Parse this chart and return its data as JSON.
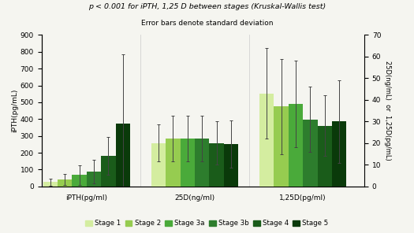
{
  "title_line1": "p < 0.001 for iPTH, 1,25 D between stages (Kruskal-Wallis test)",
  "title_line2": "Error bars denote standard deviation",
  "groups": [
    "iPTH(pg/ml)",
    "25D(ng/ml)",
    "1,25D(pg/ml)"
  ],
  "stages": [
    "Stage 1",
    "Stage 2",
    "Stage 3a",
    "Stage 3b",
    "Stage 4",
    "Stage 5"
  ],
  "colors": [
    "#d4eda0",
    "#96cc50",
    "#4aaa3a",
    "#2d7d2d",
    "#1a5c1a",
    "#0a3a0a"
  ],
  "bar_values_left": {
    "iPTH(pg/ml)": [
      25,
      42,
      68,
      88,
      183,
      372
    ]
  },
  "bar_errors_left": {
    "iPTH(pg/ml)": [
      22,
      32,
      58,
      72,
      112,
      412
    ]
  },
  "bar_values_right": {
    "25D(ng/ml)": [
      20,
      22,
      22,
      22,
      20,
      19.5
    ],
    "1,25D(pg/ml)": [
      43,
      37,
      38,
      31,
      28,
      30
    ]
  },
  "bar_errors_right": {
    "25D(ng/ml)": [
      8.5,
      10.5,
      10.5,
      10.5,
      10.0,
      11.0
    ],
    "1,25D(pg/ml)": [
      21,
      22,
      20,
      15,
      14,
      19
    ]
  },
  "ylim_left": [
    0,
    900
  ],
  "ylim_right": [
    0,
    70
  ],
  "ylabel_left": "iPTH(pg/mL)",
  "ylabel_right": "25D(ng/mL)  or  1,25D(pg/mL)",
  "yticks_left": [
    0,
    100,
    200,
    300,
    400,
    500,
    600,
    700,
    800,
    900
  ],
  "yticks_right": [
    0,
    10,
    20,
    30,
    40,
    50,
    60,
    70
  ],
  "background_color": "#f5f5f0",
  "bar_width": 0.09,
  "group_centers": [
    0.28,
    0.95,
    1.62
  ],
  "xlim": [
    0.0,
    2.0
  ]
}
